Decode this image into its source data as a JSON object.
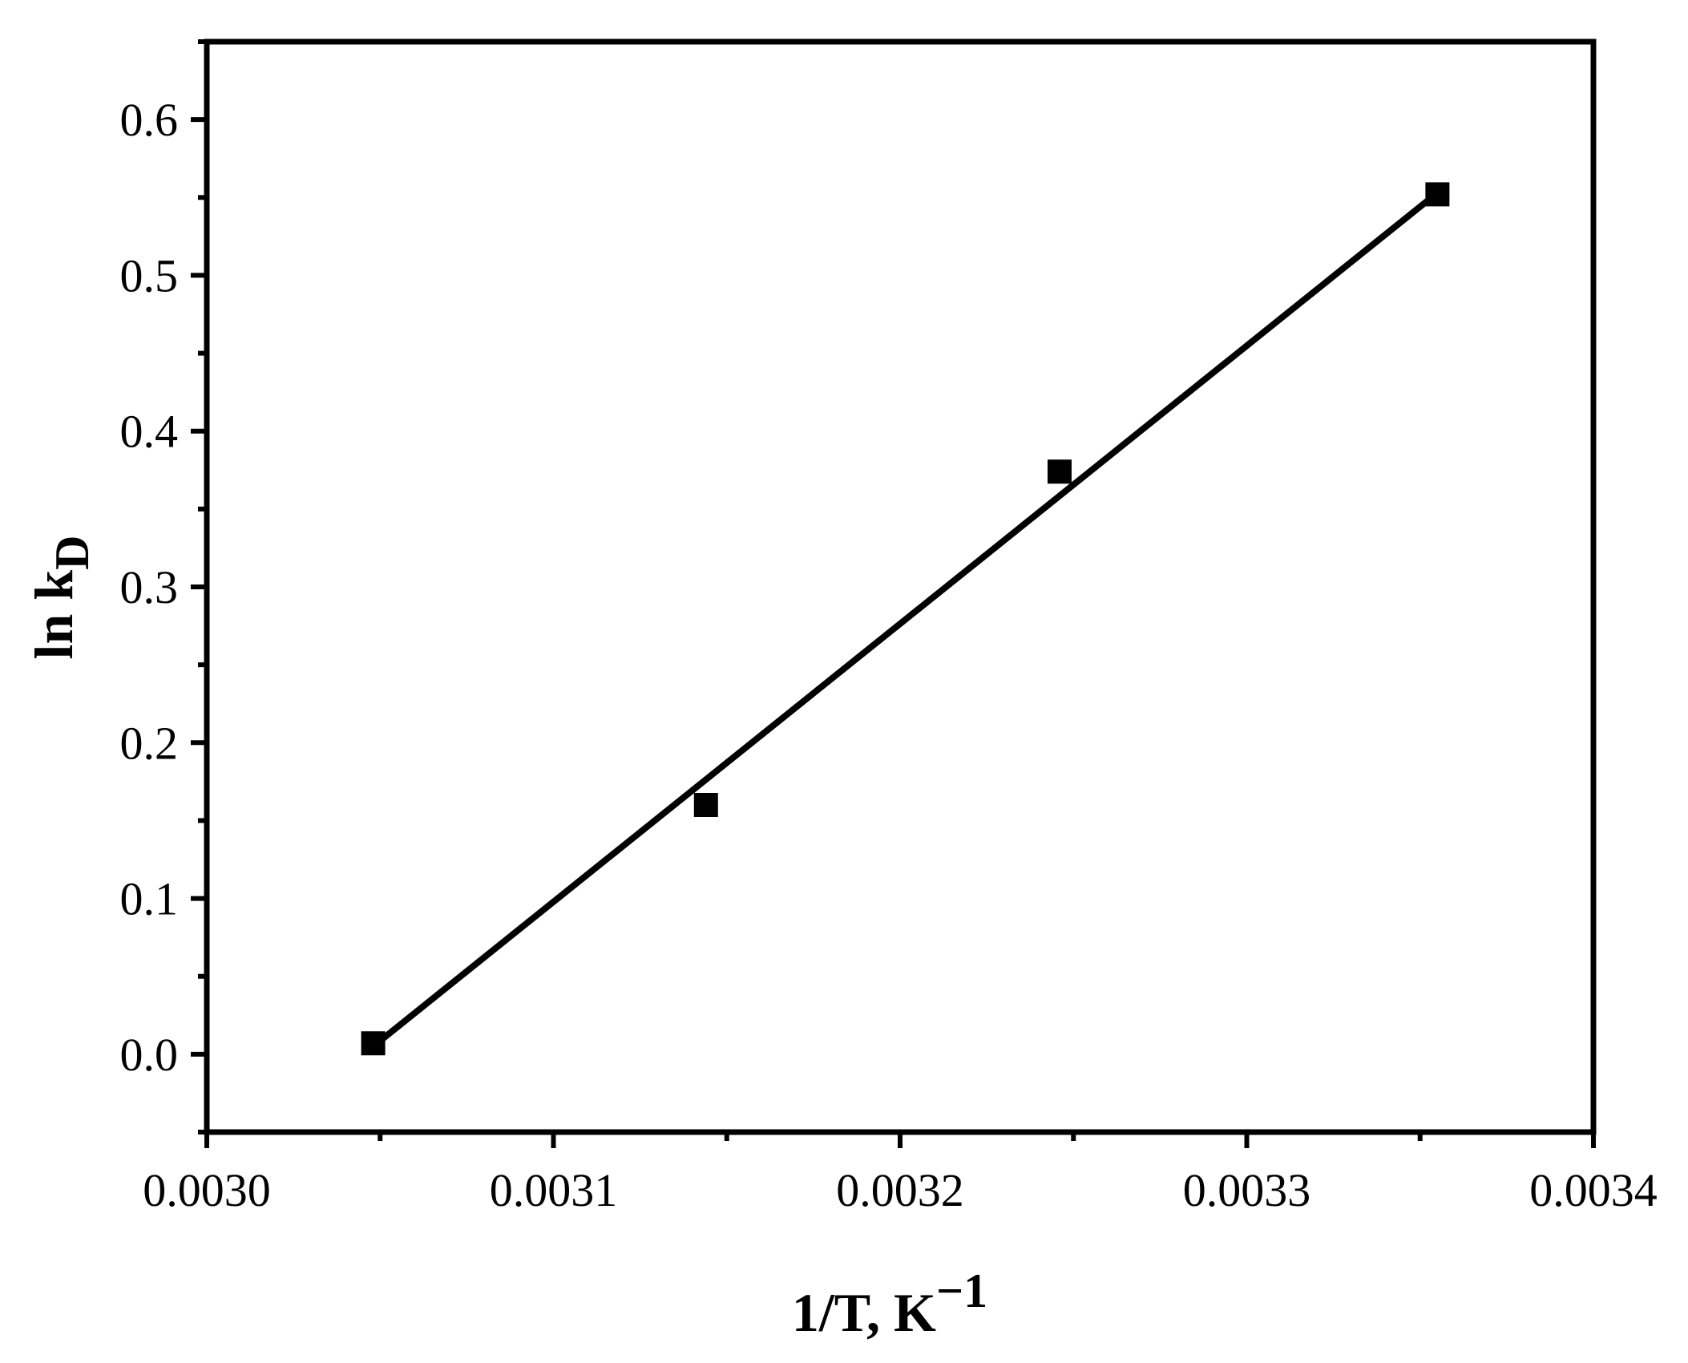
{
  "chart_data": {
    "type": "scatter",
    "title": "",
    "xlabel": {
      "main": "1/T, K",
      "superscript": "−1"
    },
    "ylabel": {
      "main": "ln k",
      "subscript": "D"
    },
    "xlim": [
      0.003,
      0.0034
    ],
    "ylim": [
      -0.05,
      0.65
    ],
    "xticks": [
      0.003,
      0.0031,
      0.0032,
      0.0033,
      0.0034
    ],
    "xtick_labels": [
      "0.0030",
      "0.0031",
      "0.0032",
      "0.0033",
      "0.0034"
    ],
    "xminor": [
      0.00305,
      0.00315,
      0.00325,
      0.00335
    ],
    "yticks": [
      0.0,
      0.1,
      0.2,
      0.3,
      0.4,
      0.5,
      0.6
    ],
    "ytick_labels": [
      "0.0",
      "0.1",
      "0.2",
      "0.3",
      "0.4",
      "0.5",
      "0.6"
    ],
    "yminor": [
      -0.05,
      0.05,
      0.15,
      0.25,
      0.35,
      0.45,
      0.55,
      0.65
    ],
    "grid": false,
    "legend": "none",
    "series": [
      {
        "marker": "square",
        "color": "#000000",
        "x": [
          0.003048,
          0.003144,
          0.003246,
          0.003355
        ],
        "y": [
          0.007,
          0.16,
          0.374,
          0.552
        ]
      }
    ],
    "fit_line": {
      "color": "#000000",
      "x": [
        0.003048,
        0.003355
      ],
      "y": [
        0.005,
        0.553
      ]
    }
  }
}
